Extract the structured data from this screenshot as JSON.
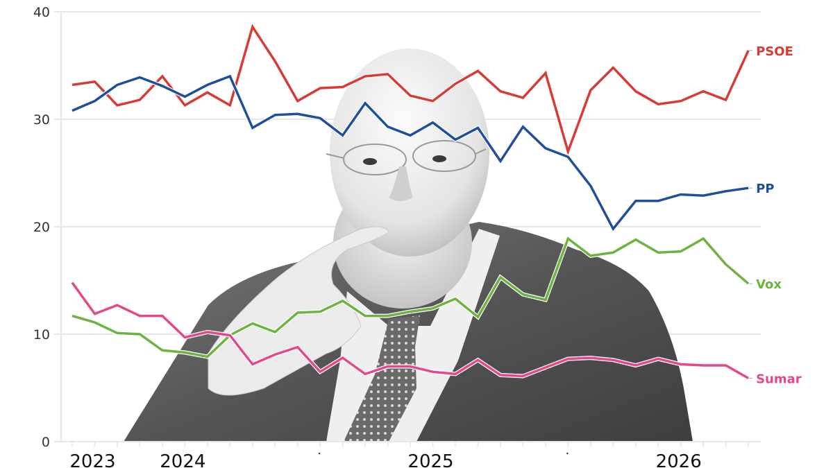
{
  "chart_data": {
    "type": "line",
    "title": "",
    "xlabel": "",
    "ylabel": "",
    "ylim": [
      0,
      40
    ],
    "yticks": [
      0,
      10,
      20,
      30,
      40
    ],
    "grid": true,
    "legend_position": "right-inline-labels",
    "x_year_labels": [
      {
        "label": "2023",
        "index": 1
      },
      {
        "label": "2024",
        "index": 5
      },
      {
        "label": "2025",
        "index": 16
      },
      {
        "label": "2026",
        "index": 27
      }
    ],
    "x_minor_dots": [
      11,
      22
    ],
    "num_points": 31,
    "series": [
      {
        "name": "PSOE",
        "color": "#d83a34",
        "values": [
          33.2,
          33.5,
          31.3,
          31.8,
          34.0,
          31.3,
          32.5,
          31.3,
          38.6,
          35.4,
          31.7,
          32.9,
          33.0,
          34.0,
          34.2,
          32.2,
          31.7,
          33.3,
          34.5,
          32.6,
          32.0,
          34.3,
          27.0,
          32.7,
          34.8,
          32.6,
          31.4,
          31.7,
          32.6,
          31.8,
          36.4
        ]
      },
      {
        "name": "PP",
        "color": "#1f4e9c",
        "values": [
          30.8,
          31.7,
          33.2,
          33.9,
          33.1,
          32.1,
          33.2,
          34.0,
          29.2,
          30.4,
          30.5,
          30.1,
          28.5,
          31.5,
          29.3,
          28.5,
          29.7,
          28.1,
          29.2,
          26.1,
          29.3,
          27.3,
          26.5,
          23.8,
          19.8,
          22.4,
          22.4,
          23.0,
          22.9,
          23.3,
          23.6
        ]
      },
      {
        "name": "Vox",
        "color": "#6cb33f",
        "values": [
          11.7,
          11.1,
          10.1,
          10.0,
          8.5,
          8.3,
          7.9,
          9.9,
          11.0,
          10.2,
          12.0,
          12.1,
          13.1,
          11.7,
          11.7,
          12.1,
          12.4,
          13.3,
          11.6,
          15.3,
          13.7,
          13.2,
          18.9,
          17.3,
          17.6,
          18.8,
          17.6,
          17.7,
          18.9,
          16.5,
          14.7
        ]
      },
      {
        "name": "Sumar",
        "color": "#e5478a",
        "values": [
          14.8,
          11.9,
          12.7,
          11.7,
          11.7,
          9.7,
          10.2,
          9.9,
          7.2,
          8.1,
          8.8,
          6.5,
          7.8,
          6.3,
          7.0,
          7.0,
          6.5,
          6.3,
          7.6,
          6.2,
          6.1,
          6.9,
          7.7,
          7.8,
          7.6,
          7.1,
          7.7,
          7.2,
          7.1,
          7.1,
          5.9
        ]
      }
    ]
  },
  "colors": {
    "grid": "#e6e6e6",
    "axis_text": "#333333",
    "background": "#ffffff"
  },
  "photo": {
    "description": "black-and-white portrait of a bald bearded man in glasses, suit and tie, finger to lips"
  }
}
